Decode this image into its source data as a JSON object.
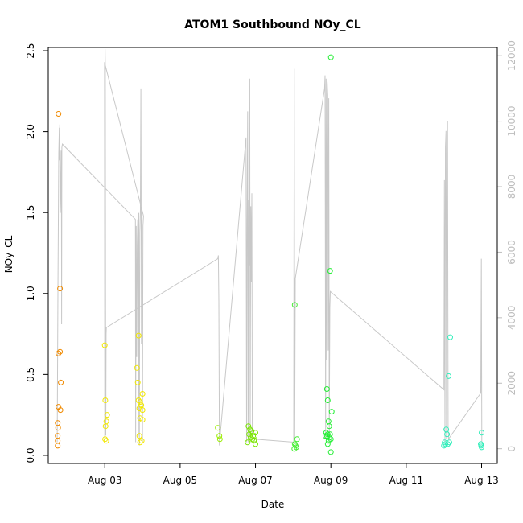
{
  "chart_data": {
    "type": "scatter",
    "title": "ATOM1 Southbound NOy_CL",
    "xlabel": "Date",
    "ylabel": "NOy_CL",
    "xlim": [
      "2016-08-01T12:00",
      "2016-08-13T10:00"
    ],
    "ylim": [
      -0.05,
      2.52
    ],
    "y2lim": [
      -450,
      12250
    ],
    "x_ticks": [
      {
        "label": "Aug 03",
        "date": "2016-08-03"
      },
      {
        "label": "Aug 05",
        "date": "2016-08-05"
      },
      {
        "label": "Aug 07",
        "date": "2016-08-07"
      },
      {
        "label": "Aug 09",
        "date": "2016-08-09"
      },
      {
        "label": "Aug 11",
        "date": "2016-08-11"
      },
      {
        "label": "Aug 13",
        "date": "2016-08-13"
      }
    ],
    "y_ticks": [
      "0.0",
      "0.5",
      "1.0",
      "1.5",
      "2.0",
      "2.5"
    ],
    "y2_ticks": [
      "0",
      "2000",
      "4000",
      "6000",
      "8000",
      "10000",
      "12000"
    ],
    "points": [
      {
        "x": "2016-08-01T18:30",
        "y": 2.11,
        "color": "#f08a00"
      },
      {
        "x": "2016-08-01T18:30",
        "y": 0.63,
        "color": "#f08a00"
      },
      {
        "x": "2016-08-01T18:30",
        "y": 0.3,
        "color": "#f08a00"
      },
      {
        "x": "2016-08-01T18:00",
        "y": 0.2,
        "color": "#f08a00"
      },
      {
        "x": "2016-08-01T18:15",
        "y": 0.17,
        "color": "#f08a00"
      },
      {
        "x": "2016-08-01T18:00",
        "y": 0.12,
        "color": "#f08a00"
      },
      {
        "x": "2016-08-01T18:00",
        "y": 0.09,
        "color": "#f08a00"
      },
      {
        "x": "2016-08-01T18:00",
        "y": 0.06,
        "color": "#f08a00"
      },
      {
        "x": "2016-08-01T19:30",
        "y": 1.03,
        "color": "#f08a00"
      },
      {
        "x": "2016-08-01T19:30",
        "y": 0.64,
        "color": "#f08a00"
      },
      {
        "x": "2016-08-01T20:00",
        "y": 0.45,
        "color": "#f08a00"
      },
      {
        "x": "2016-08-01T19:45",
        "y": 0.28,
        "color": "#f08a00"
      },
      {
        "x": "2016-08-03T00:00",
        "y": 0.68,
        "color": "#f2e800"
      },
      {
        "x": "2016-08-03T00:20",
        "y": 0.34,
        "color": "#f2e800"
      },
      {
        "x": "2016-08-03T01:30",
        "y": 0.25,
        "color": "#f2e800"
      },
      {
        "x": "2016-08-03T01:00",
        "y": 0.21,
        "color": "#f2e800"
      },
      {
        "x": "2016-08-03T00:30",
        "y": 0.18,
        "color": "#f2e800"
      },
      {
        "x": "2016-08-03T00:10",
        "y": 0.1,
        "color": "#f2e800"
      },
      {
        "x": "2016-08-03T01:00",
        "y": 0.09,
        "color": "#f2e800"
      },
      {
        "x": "2016-08-03T21:30",
        "y": 0.74,
        "color": "#f2e800"
      },
      {
        "x": "2016-08-03T20:30",
        "y": 0.54,
        "color": "#f2e800"
      },
      {
        "x": "2016-08-03T21:00",
        "y": 0.45,
        "color": "#f2e800"
      },
      {
        "x": "2016-08-04T00:00",
        "y": 0.38,
        "color": "#f2e800"
      },
      {
        "x": "2016-08-03T21:30",
        "y": 0.34,
        "color": "#f2e800"
      },
      {
        "x": "2016-08-03T22:30",
        "y": 0.33,
        "color": "#f2e800"
      },
      {
        "x": "2016-08-03T23:15",
        "y": 0.31,
        "color": "#f2e800"
      },
      {
        "x": "2016-08-03T22:00",
        "y": 0.29,
        "color": "#f2e800"
      },
      {
        "x": "2016-08-04T00:00",
        "y": 0.28,
        "color": "#f2e800"
      },
      {
        "x": "2016-08-03T22:30",
        "y": 0.23,
        "color": "#f2e800"
      },
      {
        "x": "2016-08-04T00:00",
        "y": 0.22,
        "color": "#f2e800"
      },
      {
        "x": "2016-08-03T22:00",
        "y": 0.12,
        "color": "#f2e800"
      },
      {
        "x": "2016-08-03T23:30",
        "y": 0.09,
        "color": "#f2e800"
      },
      {
        "x": "2016-08-03T22:30",
        "y": 0.08,
        "color": "#f2e800"
      },
      {
        "x": "2016-08-06T00:00",
        "y": 0.17,
        "color": "#9aee00"
      },
      {
        "x": "2016-08-06T01:00",
        "y": 0.12,
        "color": "#9aee00"
      },
      {
        "x": "2016-08-06T01:20",
        "y": 0.1,
        "color": "#9aee00"
      },
      {
        "x": "2016-08-06T19:30",
        "y": 0.18,
        "color": "#7ae600"
      },
      {
        "x": "2016-08-06T20:30",
        "y": 0.16,
        "color": "#7ae600"
      },
      {
        "x": "2016-08-06T21:30",
        "y": 0.15,
        "color": "#7ae600"
      },
      {
        "x": "2016-08-07T00:00",
        "y": 0.14,
        "color": "#7ae600"
      },
      {
        "x": "2016-08-06T20:00",
        "y": 0.13,
        "color": "#7ae600"
      },
      {
        "x": "2016-08-06T22:30",
        "y": 0.12,
        "color": "#7ae600"
      },
      {
        "x": "2016-08-06T23:30",
        "y": 0.12,
        "color": "#7ae600"
      },
      {
        "x": "2016-08-06T21:00",
        "y": 0.11,
        "color": "#7ae600"
      },
      {
        "x": "2016-08-06T22:00",
        "y": 0.1,
        "color": "#7ae600"
      },
      {
        "x": "2016-08-06T23:00",
        "y": 0.09,
        "color": "#7ae600"
      },
      {
        "x": "2016-08-06T19:00",
        "y": 0.08,
        "color": "#7ae600"
      },
      {
        "x": "2016-08-07T00:00",
        "y": 0.07,
        "color": "#7ae600"
      },
      {
        "x": "2016-08-08T01:00",
        "y": 0.93,
        "color": "#44ee33"
      },
      {
        "x": "2016-08-08T02:30",
        "y": 0.1,
        "color": "#44ee33"
      },
      {
        "x": "2016-08-08T01:00",
        "y": 0.07,
        "color": "#44ee33"
      },
      {
        "x": "2016-08-08T01:30",
        "y": 0.06,
        "color": "#44ee33"
      },
      {
        "x": "2016-08-08T02:00",
        "y": 0.05,
        "color": "#44ee33"
      },
      {
        "x": "2016-08-08T00:45",
        "y": 0.04,
        "color": "#44ee33"
      },
      {
        "x": "2016-08-09T00:00",
        "y": 2.46,
        "color": "#22ee33"
      },
      {
        "x": "2016-08-08T23:30",
        "y": 1.14,
        "color": "#22ee33"
      },
      {
        "x": "2016-08-08T21:30",
        "y": 0.41,
        "color": "#22ee33"
      },
      {
        "x": "2016-08-08T22:00",
        "y": 0.34,
        "color": "#22ee33"
      },
      {
        "x": "2016-08-09T00:30",
        "y": 0.27,
        "color": "#22ee33"
      },
      {
        "x": "2016-08-08T22:30",
        "y": 0.21,
        "color": "#22ee33"
      },
      {
        "x": "2016-08-08T23:00",
        "y": 0.18,
        "color": "#22ee33"
      },
      {
        "x": "2016-08-08T21:00",
        "y": 0.14,
        "color": "#22ee33"
      },
      {
        "x": "2016-08-08T22:00",
        "y": 0.13,
        "color": "#22ee33"
      },
      {
        "x": "2016-08-08T23:30",
        "y": 0.13,
        "color": "#22ee33"
      },
      {
        "x": "2016-08-08T20:30",
        "y": 0.12,
        "color": "#22ee33"
      },
      {
        "x": "2016-08-08T21:30",
        "y": 0.12,
        "color": "#22ee33"
      },
      {
        "x": "2016-08-08T23:00",
        "y": 0.11,
        "color": "#22ee33"
      },
      {
        "x": "2016-08-09T00:00",
        "y": 0.1,
        "color": "#22ee33"
      },
      {
        "x": "2016-08-08T22:30",
        "y": 0.09,
        "color": "#22ee33"
      },
      {
        "x": "2016-08-08T22:00",
        "y": 0.07,
        "color": "#22ee33"
      },
      {
        "x": "2016-08-09T00:00",
        "y": 0.02,
        "color": "#22ee33"
      },
      {
        "x": "2016-08-12T04:00",
        "y": 0.73,
        "color": "#33eebb"
      },
      {
        "x": "2016-08-12T03:00",
        "y": 0.49,
        "color": "#33eebb"
      },
      {
        "x": "2016-08-12T01:30",
        "y": 0.16,
        "color": "#33eebb"
      },
      {
        "x": "2016-08-12T02:00",
        "y": 0.13,
        "color": "#33eebb"
      },
      {
        "x": "2016-08-12T00:30",
        "y": 0.08,
        "color": "#33eebb"
      },
      {
        "x": "2016-08-12T01:00",
        "y": 0.07,
        "color": "#33eebb"
      },
      {
        "x": "2016-08-12T03:30",
        "y": 0.08,
        "color": "#33eebb"
      },
      {
        "x": "2016-08-12T00:00",
        "y": 0.06,
        "color": "#33eebb"
      },
      {
        "x": "2016-08-12T02:30",
        "y": 0.07,
        "color": "#33eebb"
      },
      {
        "x": "2016-08-13T00:00",
        "y": 0.14,
        "color": "#33eebb"
      },
      {
        "x": "2016-08-12T23:30",
        "y": 0.07,
        "color": "#33eebb"
      },
      {
        "x": "2016-08-12T23:45",
        "y": 0.06,
        "color": "#33eebb"
      },
      {
        "x": "2016-08-13T00:00",
        "y": 0.05,
        "color": "#33eebb"
      }
    ],
    "altitude_series": {
      "color": "#c8c8c8",
      "points": [
        [
          "2016-08-01T17:40",
          200
        ],
        [
          "2016-08-01T18:10",
          4800
        ],
        [
          "2016-08-01T18:40",
          9000
        ],
        [
          "2016-08-01T19:00",
          9800
        ],
        [
          "2016-08-01T19:10",
          8800
        ],
        [
          "2016-08-01T19:20",
          9900
        ],
        [
          "2016-08-01T19:30",
          8600
        ],
        [
          "2016-08-01T19:40",
          7200
        ],
        [
          "2016-08-01T19:50",
          7500
        ],
        [
          "2016-08-01T20:00",
          8200
        ],
        [
          "2016-08-01T20:10",
          9100
        ],
        [
          "2016-08-01T20:20",
          8800
        ],
        [
          "2016-08-01T20:30",
          3800
        ],
        [
          "2016-08-01T20:40",
          9200
        ],
        [
          "2016-08-01T21:00",
          9300
        ],
        [
          "2016-08-03T19:30",
          7000
        ],
        [
          "2016-08-03T19:40",
          200
        ],
        [
          "2016-08-03T20:00",
          6800
        ],
        [
          "2016-08-03T20:20",
          2800
        ],
        [
          "2016-08-03T20:40",
          6200
        ],
        [
          "2016-08-03T21:00",
          7000
        ],
        [
          "2016-08-03T21:20",
          400
        ],
        [
          "2016-08-03T21:40",
          7200
        ],
        [
          "2016-08-03T22:00",
          100
        ],
        [
          "2016-08-03T22:20",
          6600
        ],
        [
          "2016-08-03T22:40",
          7300
        ],
        [
          "2016-08-03T23:00",
          11000
        ],
        [
          "2016-08-03T23:20",
          3200
        ],
        [
          "2016-08-03T23:40",
          7000
        ],
        [
          "2016-08-04T00:00",
          200
        ],
        [
          "2016-08-04T00:20",
          6800
        ],
        [
          "2016-08-04T00:40",
          7100
        ],
        [
          "2016-08-02T23:50",
          11800
        ],
        [
          "2016-08-03T00:00",
          300
        ],
        [
          "2016-08-03T00:10",
          12200
        ],
        [
          "2016-08-03T00:20",
          11700
        ],
        [
          "2016-08-03T00:30",
          4600
        ],
        [
          "2016-08-03T00:40",
          400
        ],
        [
          "2016-08-03T00:50",
          3500
        ],
        [
          "2016-08-03T01:00",
          3700
        ],
        [
          "2016-08-06T00:00",
          5800
        ],
        [
          "2016-08-06T00:20",
          5900
        ],
        [
          "2016-08-06T00:40",
          4500
        ],
        [
          "2016-08-06T01:00",
          100
        ],
        [
          "2016-08-06T01:20",
          300
        ],
        [
          "2016-08-06T18:00",
          9500
        ],
        [
          "2016-08-06T18:20",
          200
        ],
        [
          "2016-08-06T18:40",
          6900
        ],
        [
          "2016-08-06T19:00",
          10300
        ],
        [
          "2016-08-06T19:20",
          200
        ],
        [
          "2016-08-06T19:40",
          7600
        ],
        [
          "2016-08-06T20:00",
          5600
        ],
        [
          "2016-08-06T20:20",
          11300
        ],
        [
          "2016-08-06T20:40",
          300
        ],
        [
          "2016-08-06T21:00",
          7400
        ],
        [
          "2016-08-06T21:20",
          5100
        ],
        [
          "2016-08-06T21:40",
          7800
        ],
        [
          "2016-08-06T22:00",
          300
        ],
        [
          "2016-08-08T00:20",
          200
        ],
        [
          "2016-08-08T00:40",
          11600
        ],
        [
          "2016-08-08T01:00",
          300
        ],
        [
          "2016-08-08T01:20",
          5200
        ],
        [
          "2016-08-08T20:00",
          11000
        ],
        [
          "2016-08-08T20:20",
          11400
        ],
        [
          "2016-08-08T20:40",
          300
        ],
        [
          "2016-08-08T21:00",
          11300
        ],
        [
          "2016-08-08T21:20",
          2700
        ],
        [
          "2016-08-08T21:40",
          11200
        ],
        [
          "2016-08-08T22:00",
          10800
        ],
        [
          "2016-08-08T22:20",
          3000
        ],
        [
          "2016-08-08T22:40",
          10700
        ],
        [
          "2016-08-08T23:00",
          300
        ],
        [
          "2016-08-08T23:20",
          4300
        ],
        [
          "2016-08-08T23:40",
          4800
        ],
        [
          "2016-08-12T00:00",
          1800
        ],
        [
          "2016-08-12T00:20",
          8200
        ],
        [
          "2016-08-12T00:40",
          200
        ],
        [
          "2016-08-12T01:00",
          9200
        ],
        [
          "2016-08-12T01:20",
          9700
        ],
        [
          "2016-08-12T01:40",
          300
        ],
        [
          "2016-08-12T02:00",
          9900
        ],
        [
          "2016-08-12T02:20",
          10000
        ],
        [
          "2016-08-12T02:40",
          700
        ],
        [
          "2016-08-12T03:00",
          300
        ],
        [
          "2016-08-12T23:30",
          1700
        ],
        [
          "2016-08-12T23:50",
          5800
        ],
        [
          "2016-08-13T00:10",
          200
        ]
      ]
    }
  }
}
